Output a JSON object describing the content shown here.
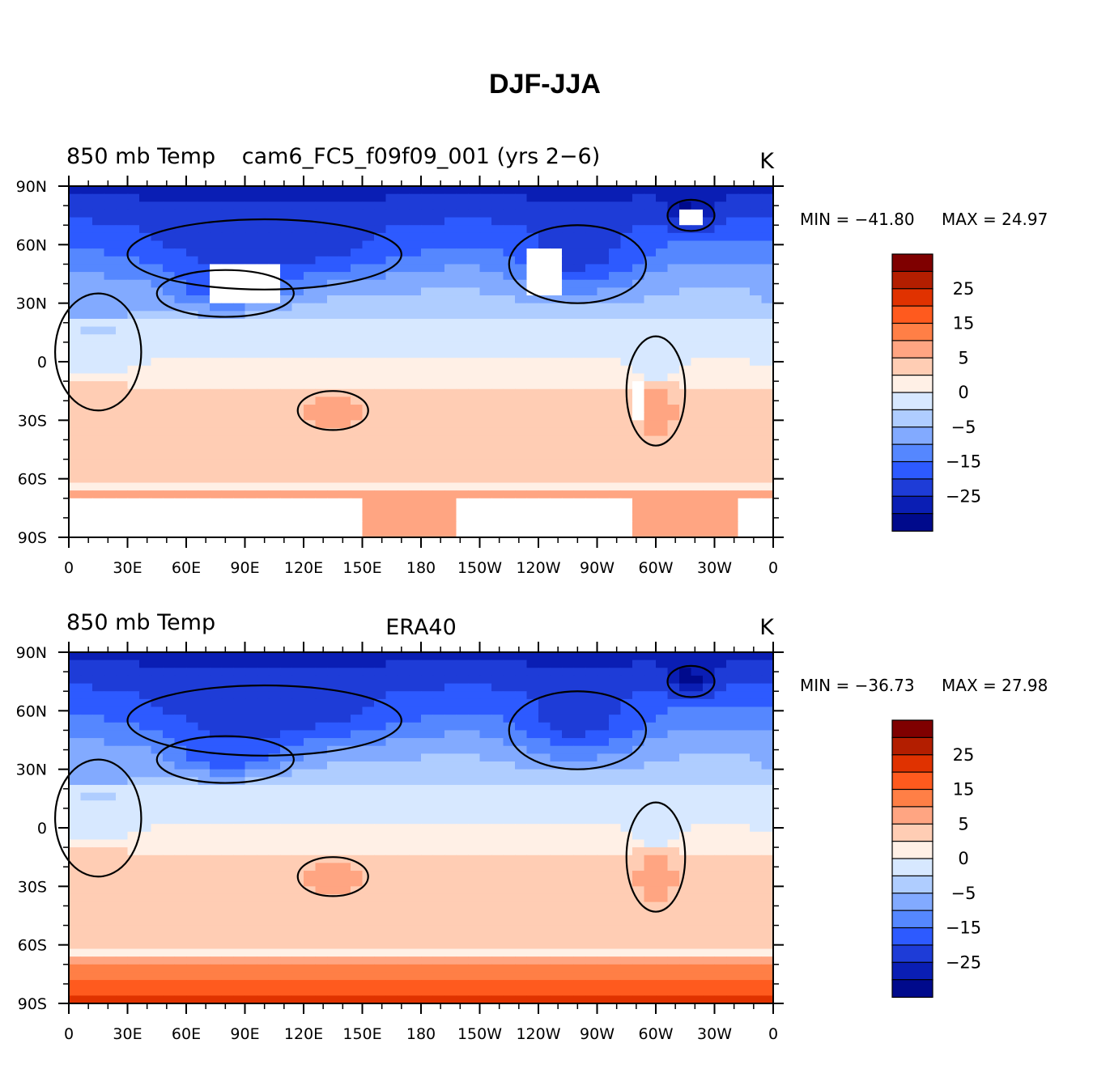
{
  "title": "DJF-JJA",
  "panels": [
    {
      "left_title": "850 mb Temp",
      "center_title": "cam6_FC5_f09f09_001 (yrs 2−6)",
      "units": "K",
      "min_label": "MIN = −41.80",
      "max_label": "MAX =   24.97",
      "dataset": "model"
    },
    {
      "left_title": "850 mb Temp",
      "center_title": "ERA40",
      "units": "K",
      "min_label": "MIN = −36.73",
      "max_label": "MAX =   27.98",
      "dataset": "obs"
    }
  ],
  "lat_ticks": [
    "90N",
    "60N",
    "30N",
    "0",
    "30S",
    "60S",
    "90S"
  ],
  "lon_ticks": [
    "0",
    "30E",
    "60E",
    "90E",
    "120E",
    "150E",
    "180",
    "150W",
    "120W",
    "90W",
    "60W",
    "30W",
    "0"
  ],
  "colorbar": {
    "labels": [
      "25",
      "15",
      "5",
      "0",
      "−5",
      "−15",
      "−25"
    ],
    "colors_top_to_bottom": [
      "#7f0000",
      "#b31e00",
      "#e03200",
      "#ff5a1e",
      "#ff7f46",
      "#ffa582",
      "#ffcdb4",
      "#fff0e6",
      "#d7e8ff",
      "#afcdff",
      "#82aaff",
      "#5587ff",
      "#2d5aff",
      "#1e3cd7",
      "#0a1eb4",
      "#000a8c"
    ]
  },
  "colors": {
    "land_outline": "#000000",
    "missing": "#ffffff"
  }
}
